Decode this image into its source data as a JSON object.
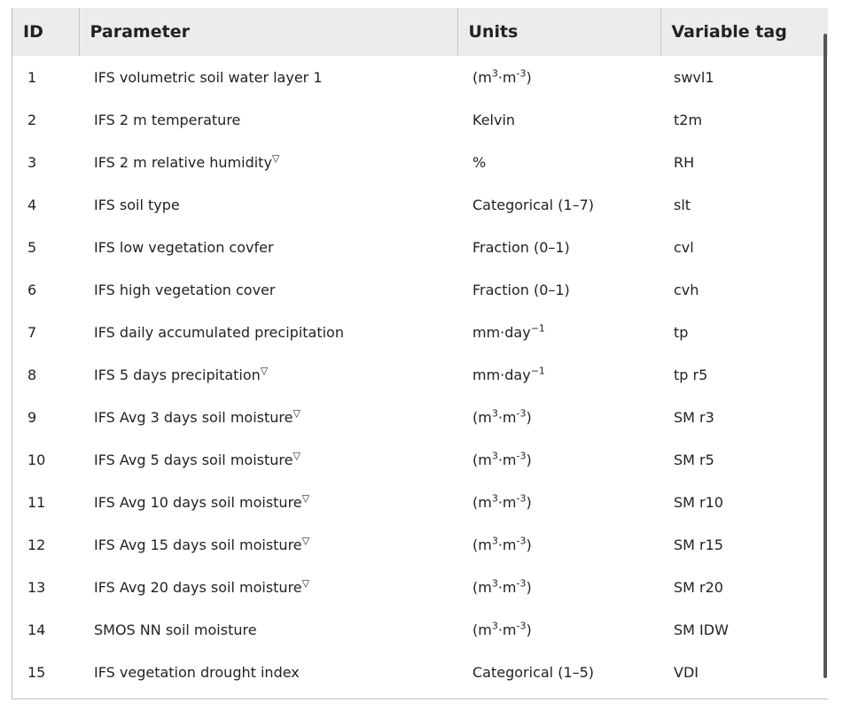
{
  "table": {
    "headers": [
      "ID",
      "Parameter",
      "Units",
      "Variable tag"
    ],
    "rows": [
      {
        "id": "1",
        "param": "IFS volumetric soil water layer 1",
        "param_mark": "",
        "units_pre": "(m",
        "units_sup1": "3",
        "units_mid": "·m",
        "units_sup2": "-3",
        "units_post": ")",
        "tag": "swvl1"
      },
      {
        "id": "2",
        "param": "IFS 2 m temperature",
        "param_mark": "",
        "units_pre": "Kelvin",
        "units_sup1": "",
        "units_mid": "",
        "units_sup2": "",
        "units_post": "",
        "tag": "t2m"
      },
      {
        "id": "3",
        "param": "IFS 2 m relative humidity",
        "param_mark": "▽",
        "units_pre": "%",
        "units_sup1": "",
        "units_mid": "",
        "units_sup2": "",
        "units_post": "",
        "tag": "RH"
      },
      {
        "id": "4",
        "param": "IFS soil type",
        "param_mark": "",
        "units_pre": "Categorical (1–7)",
        "units_sup1": "",
        "units_mid": "",
        "units_sup2": "",
        "units_post": "",
        "tag": "slt"
      },
      {
        "id": "5",
        "param": "IFS low vegetation covfer",
        "param_mark": "",
        "units_pre": "Fraction (0–1)",
        "units_sup1": "",
        "units_mid": "",
        "units_sup2": "",
        "units_post": "",
        "tag": "cvl"
      },
      {
        "id": "6",
        "param": "IFS high vegetation cover",
        "param_mark": "",
        "units_pre": "Fraction (0–1)",
        "units_sup1": "",
        "units_mid": "",
        "units_sup2": "",
        "units_post": "",
        "tag": "cvh"
      },
      {
        "id": "7",
        "param": "IFS daily accumulated precipitation",
        "param_mark": "",
        "units_pre": "mm·day",
        "units_sup1": "−1",
        "units_mid": "",
        "units_sup2": "",
        "units_post": "",
        "tag": "tp"
      },
      {
        "id": "8",
        "param": "IFS 5 days precipitation",
        "param_mark": "▽",
        "units_pre": "mm·day",
        "units_sup1": "−1",
        "units_mid": "",
        "units_sup2": "",
        "units_post": "",
        "tag": "tp r5"
      },
      {
        "id": "9",
        "param": "IFS Avg 3 days soil moisture",
        "param_mark": "▽",
        "units_pre": "(m",
        "units_sup1": "3",
        "units_mid": "·m",
        "units_sup2": "-3",
        "units_post": ")",
        "tag": "SM r3"
      },
      {
        "id": "10",
        "param": "IFS Avg 5 days soil moisture",
        "param_mark": "▽",
        "units_pre": "(m",
        "units_sup1": "3",
        "units_mid": "·m",
        "units_sup2": "-3",
        "units_post": ")",
        "tag": "SM r5"
      },
      {
        "id": "11",
        "param": "IFS Avg 10 days soil moisture",
        "param_mark": "▽",
        "units_pre": "(m",
        "units_sup1": "3",
        "units_mid": "·m",
        "units_sup2": "-3",
        "units_post": ")",
        "tag": "SM r10"
      },
      {
        "id": "12",
        "param": "IFS Avg 15 days soil moisture",
        "param_mark": "▽",
        "units_pre": "(m",
        "units_sup1": "3",
        "units_mid": "·m",
        "units_sup2": "-3",
        "units_post": ")",
        "tag": "SM r15"
      },
      {
        "id": "13",
        "param": "IFS Avg 20 days soil moisture",
        "param_mark": "▽",
        "units_pre": "(m",
        "units_sup1": "3",
        "units_mid": "·m",
        "units_sup2": "-3",
        "units_post": ")",
        "tag": "SM r20"
      },
      {
        "id": "14",
        "param": "SMOS NN soil moisture",
        "param_mark": "",
        "units_pre": "(m",
        "units_sup1": "3",
        "units_mid": "·m",
        "units_sup2": "-3",
        "units_post": ")",
        "tag": "SM IDW"
      },
      {
        "id": "15",
        "param": "IFS vegetation drought index",
        "param_mark": "",
        "units_pre": "Categorical (1–5)",
        "units_sup1": "",
        "units_mid": "",
        "units_sup2": "",
        "units_post": "",
        "tag": "VDI"
      }
    ]
  },
  "colors": {
    "header_bg": "#ececec",
    "border": "#bdbdbd",
    "scrollbar": "#555555"
  }
}
